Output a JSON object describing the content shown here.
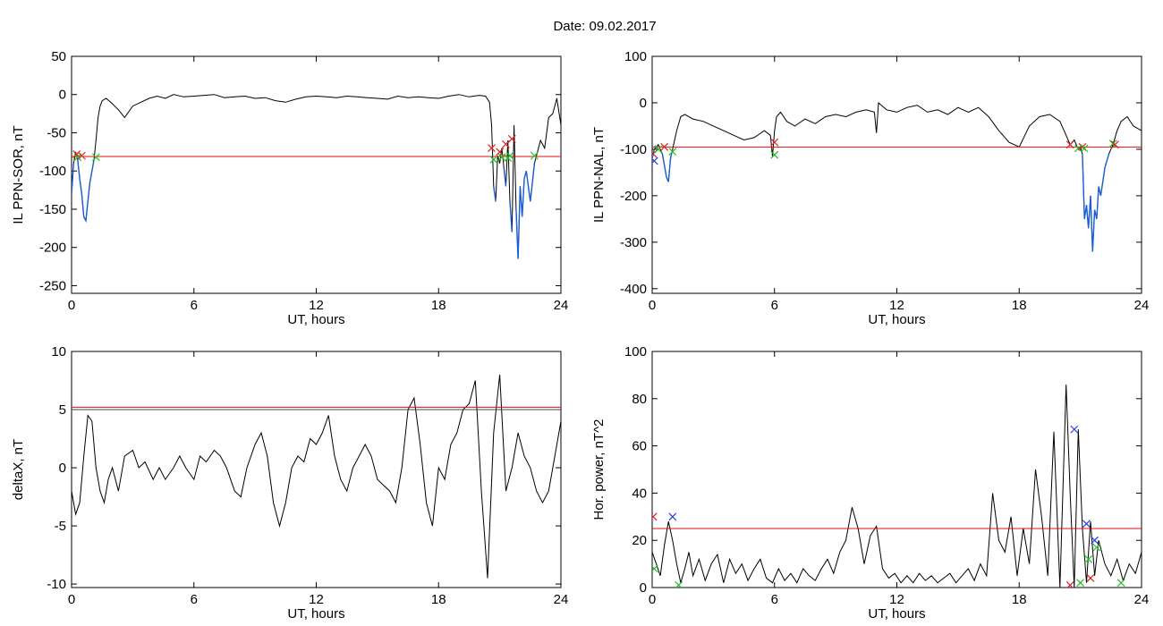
{
  "title": "Date:  09.02.2017",
  "colors": {
    "trace": "#000000",
    "highlight": "#1a5fd6",
    "threshold": "#e01010",
    "marker_red": "#e02020",
    "marker_green": "#20c020",
    "marker_blue": "#2040e0"
  },
  "chart_data": [
    {
      "type": "line",
      "xlabel": "UT, hours",
      "ylabel": "IL PPN-SOR, nT",
      "xlim": [
        0,
        24
      ],
      "ylim": [
        -260,
        50
      ],
      "xticks": [
        0,
        6,
        12,
        18,
        24
      ],
      "yticks": [
        50,
        0,
        -50,
        -100,
        -150,
        -200,
        -250
      ],
      "threshold": [
        -81
      ],
      "below_threshold_color": "blue",
      "series": [
        {
          "x": [
            0,
            0.1,
            0.2,
            0.3,
            0.4,
            0.5,
            0.6,
            0.7,
            0.8,
            0.9,
            1.0,
            1.1,
            1.2,
            1.3,
            1.4,
            1.5,
            1.7,
            2.0,
            2.3,
            2.6,
            3.0,
            3.4,
            3.8,
            4.2,
            4.6,
            5.0,
            5.5,
            6.0,
            6.5,
            7.0,
            7.5,
            8.0,
            8.5,
            9.0,
            9.5,
            10.0,
            10.5,
            11.0,
            11.5,
            12.0,
            12.5,
            13.0,
            13.5,
            14.0,
            14.5,
            15.0,
            15.5,
            16.0,
            16.5,
            17.0,
            17.5,
            18.0,
            18.5,
            19.0,
            19.5,
            20.0,
            20.3,
            20.5,
            20.6,
            20.7,
            20.8,
            20.9,
            21.0,
            21.1,
            21.2,
            21.3,
            21.4,
            21.5,
            21.6,
            21.7,
            21.8,
            21.9,
            22.0,
            22.1,
            22.2,
            22.3,
            22.5,
            22.7,
            23.0,
            23.2,
            23.4,
            23.6,
            23.8,
            24.0
          ],
          "y": [
            -130,
            -90,
            -75,
            -85,
            -110,
            -130,
            -160,
            -165,
            -140,
            -115,
            -100,
            -85,
            -60,
            -30,
            -15,
            -8,
            -5,
            -12,
            -20,
            -30,
            -15,
            -10,
            -5,
            -2,
            -5,
            0,
            -3,
            -2,
            -1,
            0,
            -4,
            -3,
            -2,
            -5,
            -4,
            -8,
            -10,
            -6,
            -3,
            -2,
            -3,
            -4,
            -2,
            -3,
            -4,
            -5,
            -6,
            -2,
            -4,
            -3,
            -4,
            -5,
            -2,
            0,
            -3,
            -1,
            -2,
            -10,
            -40,
            -120,
            -140,
            -80,
            -90,
            -70,
            -95,
            -120,
            -60,
            -140,
            -180,
            -40,
            -150,
            -215,
            -120,
            -160,
            -110,
            -100,
            -140,
            -90,
            -60,
            -70,
            -30,
            -25,
            -5,
            -40
          ]
        }
      ],
      "markers": [
        {
          "x": 0.25,
          "y": -78,
          "color": "red"
        },
        {
          "x": 0.3,
          "y": -82,
          "color": "green"
        },
        {
          "x": 0.5,
          "y": -80,
          "color": "red"
        },
        {
          "x": 1.2,
          "y": -82,
          "color": "green"
        },
        {
          "x": 20.6,
          "y": -70,
          "color": "red"
        },
        {
          "x": 20.7,
          "y": -85,
          "color": "green"
        },
        {
          "x": 21.0,
          "y": -75,
          "color": "red"
        },
        {
          "x": 21.1,
          "y": -82,
          "color": "green"
        },
        {
          "x": 21.3,
          "y": -65,
          "color": "red"
        },
        {
          "x": 21.4,
          "y": -83,
          "color": "green"
        },
        {
          "x": 21.6,
          "y": -58,
          "color": "red"
        },
        {
          "x": 21.5,
          "y": -80,
          "color": "green"
        },
        {
          "x": 22.7,
          "y": -80,
          "color": "green"
        }
      ]
    },
    {
      "type": "line",
      "xlabel": "UT, hours",
      "ylabel": "IL PPN-NAL, nT",
      "xlim": [
        0,
        24
      ],
      "ylim": [
        -410,
        100
      ],
      "xticks": [
        0,
        6,
        12,
        18,
        24
      ],
      "yticks": [
        100,
        0,
        -100,
        -200,
        -300,
        -400
      ],
      "threshold": [
        -95
      ],
      "below_threshold_color": "blue",
      "series": [
        {
          "x": [
            0,
            0.1,
            0.2,
            0.3,
            0.5,
            0.7,
            0.8,
            0.9,
            1.0,
            1.2,
            1.4,
            1.6,
            2.0,
            2.5,
            3.0,
            3.5,
            4.0,
            4.5,
            5.0,
            5.5,
            5.8,
            5.9,
            6.0,
            6.1,
            6.3,
            6.6,
            7.0,
            7.5,
            8.0,
            8.5,
            9.0,
            9.5,
            10.0,
            10.5,
            10.9,
            11.0,
            11.1,
            11.5,
            12.0,
            12.5,
            13.0,
            13.5,
            14.0,
            14.5,
            15.0,
            15.5,
            16.0,
            16.5,
            17.0,
            17.5,
            18.0,
            18.5,
            19.0,
            19.5,
            20.0,
            20.3,
            20.5,
            20.7,
            20.9,
            21.0,
            21.1,
            21.2,
            21.3,
            21.4,
            21.5,
            21.6,
            21.7,
            21.8,
            21.9,
            22.0,
            22.2,
            22.4,
            22.6,
            22.8,
            23.0,
            23.3,
            23.6,
            24.0
          ],
          "y": [
            -120,
            -100,
            -95,
            -90,
            -110,
            -160,
            -170,
            -120,
            -100,
            -60,
            -30,
            -25,
            -35,
            -40,
            -50,
            -60,
            -70,
            -80,
            -75,
            -60,
            -70,
            -115,
            -60,
            -30,
            -20,
            -40,
            -50,
            -35,
            -45,
            -30,
            -25,
            -30,
            -20,
            -15,
            -20,
            -65,
            0,
            -15,
            -20,
            -10,
            -5,
            -20,
            -15,
            -25,
            -10,
            -20,
            -10,
            -30,
            -60,
            -85,
            -95,
            -50,
            -30,
            -25,
            -40,
            -70,
            -90,
            -80,
            -100,
            -95,
            -110,
            -250,
            -220,
            -270,
            -200,
            -320,
            -230,
            -250,
            -180,
            -200,
            -140,
            -110,
            -90,
            -60,
            -40,
            -30,
            -50,
            -60
          ]
        }
      ],
      "markers": [
        {
          "x": 0.05,
          "y": -110,
          "color": "red"
        },
        {
          "x": 0.1,
          "y": -125,
          "color": "blue"
        },
        {
          "x": 0.3,
          "y": -100,
          "color": "green"
        },
        {
          "x": 0.6,
          "y": -95,
          "color": "red"
        },
        {
          "x": 1.0,
          "y": -105,
          "color": "green"
        },
        {
          "x": 6.0,
          "y": -85,
          "color": "red"
        },
        {
          "x": 6.0,
          "y": -112,
          "color": "green"
        },
        {
          "x": 20.5,
          "y": -90,
          "color": "red"
        },
        {
          "x": 20.9,
          "y": -98,
          "color": "green"
        },
        {
          "x": 21.1,
          "y": -95,
          "color": "red"
        },
        {
          "x": 21.2,
          "y": -98,
          "color": "green"
        },
        {
          "x": 22.6,
          "y": -88,
          "color": "green"
        },
        {
          "x": 22.7,
          "y": -90,
          "color": "red"
        }
      ]
    },
    {
      "type": "line",
      "xlabel": "UT, hours",
      "ylabel": "deltaX, nT",
      "xlim": [
        0,
        24
      ],
      "ylim": [
        -10.3,
        10
      ],
      "xticks": [
        0,
        6,
        12,
        18,
        24
      ],
      "yticks": [
        10,
        5,
        0,
        -5,
        -10
      ],
      "threshold": [
        5.2
      ],
      "reference": [
        5.0
      ],
      "series": [
        {
          "x": [
            0,
            0.2,
            0.4,
            0.6,
            0.8,
            1.0,
            1.2,
            1.4,
            1.6,
            1.8,
            2.0,
            2.3,
            2.6,
            3.0,
            3.3,
            3.6,
            4.0,
            4.3,
            4.6,
            5.0,
            5.3,
            5.6,
            6.0,
            6.3,
            6.6,
            7.0,
            7.3,
            7.6,
            8.0,
            8.3,
            8.6,
            9.0,
            9.3,
            9.6,
            9.9,
            10.2,
            10.5,
            10.8,
            11.1,
            11.4,
            11.7,
            12.0,
            12.3,
            12.6,
            12.9,
            13.2,
            13.5,
            13.8,
            14.1,
            14.4,
            14.7,
            15.0,
            15.3,
            15.6,
            15.9,
            16.2,
            16.5,
            16.8,
            17.1,
            17.4,
            17.7,
            18.0,
            18.3,
            18.6,
            18.9,
            19.2,
            19.5,
            19.8,
            20.1,
            20.4,
            20.7,
            21.0,
            21.3,
            21.6,
            21.9,
            22.2,
            22.5,
            22.8,
            23.1,
            23.4,
            23.7,
            24.0
          ],
          "y": [
            -2,
            -4,
            -3,
            1,
            4.5,
            4,
            0,
            -2,
            -3,
            -1,
            0,
            -2,
            1,
            1.5,
            0,
            0.5,
            -1,
            0,
            -1,
            0,
            1,
            0,
            -1,
            1,
            0.5,
            1.5,
            1,
            0,
            -2,
            -2.5,
            0,
            2,
            3,
            1,
            -3,
            -5,
            -3,
            0,
            1,
            0.5,
            2.5,
            2,
            3,
            4.5,
            1,
            -1,
            -2,
            0,
            1,
            2,
            1,
            -1,
            -1.5,
            -2,
            -3,
            0,
            5,
            6,
            2,
            -3,
            -5,
            0,
            -1,
            2,
            3,
            5,
            5.5,
            7.5,
            -2,
            -9.5,
            3,
            8,
            -2,
            0,
            3,
            1,
            0,
            -2,
            -3,
            -2,
            1,
            4
          ]
        }
      ],
      "markers": []
    },
    {
      "type": "line",
      "xlabel": "UT, hours",
      "ylabel": "Hor. power, nT^2",
      "xlim": [
        0,
        24
      ],
      "ylim": [
        0,
        100
      ],
      "xticks": [
        0,
        6,
        12,
        18,
        24
      ],
      "yticks": [
        100,
        80,
        60,
        40,
        20,
        0
      ],
      "threshold": [
        25
      ],
      "series": [
        {
          "x": [
            0,
            0.2,
            0.4,
            0.6,
            0.8,
            1.0,
            1.2,
            1.4,
            1.6,
            1.8,
            2.0,
            2.3,
            2.6,
            2.9,
            3.2,
            3.5,
            3.8,
            4.1,
            4.4,
            4.7,
            5.0,
            5.3,
            5.6,
            5.9,
            6.2,
            6.5,
            6.8,
            7.1,
            7.4,
            7.7,
            8.0,
            8.3,
            8.6,
            8.9,
            9.2,
            9.5,
            9.8,
            10.1,
            10.4,
            10.7,
            11.0,
            11.3,
            11.6,
            11.9,
            12.2,
            12.5,
            12.8,
            13.1,
            13.4,
            13.7,
            14.0,
            14.3,
            14.6,
            14.9,
            15.2,
            15.5,
            15.8,
            16.1,
            16.4,
            16.7,
            17.0,
            17.3,
            17.6,
            17.9,
            18.2,
            18.5,
            18.8,
            19.1,
            19.4,
            19.7,
            20.0,
            20.3,
            20.5,
            20.7,
            20.9,
            21.1,
            21.3,
            21.5,
            21.7,
            21.9,
            22.2,
            22.5,
            22.8,
            23.1,
            23.4,
            23.7,
            24.0
          ],
          "y": [
            15,
            10,
            5,
            18,
            28,
            20,
            10,
            2,
            8,
            15,
            5,
            12,
            3,
            10,
            14,
            2,
            12,
            6,
            10,
            3,
            8,
            12,
            4,
            2,
            8,
            3,
            6,
            2,
            8,
            5,
            3,
            8,
            12,
            6,
            15,
            20,
            34,
            25,
            10,
            22,
            26,
            8,
            4,
            6,
            2,
            5,
            2,
            6,
            3,
            5,
            2,
            4,
            6,
            2,
            5,
            8,
            3,
            10,
            5,
            40,
            20,
            15,
            30,
            5,
            25,
            10,
            50,
            30,
            5,
            66,
            0,
            86,
            40,
            0,
            67,
            25,
            2,
            28,
            5,
            20,
            10,
            5,
            12,
            3,
            10,
            6,
            15
          ]
        }
      ],
      "markers": [
        {
          "x": 0.05,
          "y": 30,
          "color": "red"
        },
        {
          "x": 0.1,
          "y": 8,
          "color": "green"
        },
        {
          "x": 1.0,
          "y": 30,
          "color": "blue"
        },
        {
          "x": 1.3,
          "y": 1,
          "color": "green"
        },
        {
          "x": 20.5,
          "y": 1,
          "color": "red"
        },
        {
          "x": 20.7,
          "y": 67,
          "color": "blue"
        },
        {
          "x": 21.0,
          "y": 2,
          "color": "green"
        },
        {
          "x": 21.3,
          "y": 27,
          "color": "blue"
        },
        {
          "x": 21.4,
          "y": 12,
          "color": "green"
        },
        {
          "x": 21.5,
          "y": 4,
          "color": "red"
        },
        {
          "x": 21.7,
          "y": 20,
          "color": "blue"
        },
        {
          "x": 21.8,
          "y": 17,
          "color": "green"
        },
        {
          "x": 23.0,
          "y": 2,
          "color": "green"
        }
      ]
    }
  ]
}
